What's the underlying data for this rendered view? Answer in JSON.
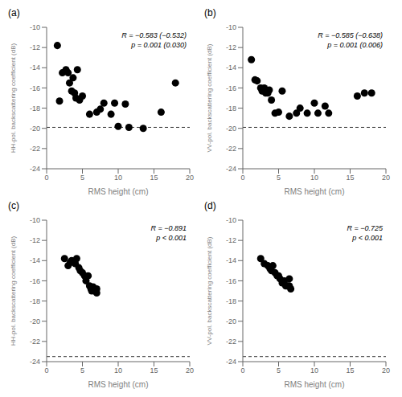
{
  "chart_data": [
    {
      "type": "scatter",
      "title": "(a)",
      "xlabel": "RMS height (cm)",
      "ylabel": "HH-pol. backscattering coefficient (dB)",
      "color": "black",
      "x": [
        1.5,
        1.8,
        2.2,
        2.7,
        3.0,
        3.2,
        3.5,
        3.7,
        3.9,
        4.1,
        4.3,
        4.6,
        5.0,
        6.0,
        7.0,
        7.5,
        8.0,
        9.0,
        9.5,
        10.0,
        11.0,
        11.5,
        13.5,
        16.0,
        18.0
      ],
      "values": [
        -11.8,
        -17.3,
        -14.5,
        -14.2,
        -14.5,
        -15.5,
        -16.3,
        -15.0,
        -16.5,
        -17.0,
        -14.2,
        -17.2,
        -16.8,
        -18.6,
        -18.4,
        -18.1,
        -17.5,
        -18.6,
        -17.5,
        -19.8,
        -17.6,
        -19.9,
        -20.0,
        -18.4,
        -15.5
      ],
      "annotations": [
        "R = −0.583 (−0.532)",
        "p = 0.001 (0.030)"
      ],
      "nesz": -19.9,
      "xlim": [
        0,
        20
      ],
      "ylim": [
        -24,
        -10
      ],
      "xticks": [
        0,
        5,
        10,
        15,
        20
      ],
      "yticks": [
        -10,
        -12,
        -14,
        -16,
        -18,
        -20,
        -22,
        -24
      ]
    },
    {
      "type": "scatter",
      "title": "(b)",
      "xlabel": "RMS height (cm)",
      "ylabel": "VV-pol. backscattering coefficient (dB)",
      "color": "black",
      "x": [
        1.2,
        1.7,
        2.0,
        2.5,
        2.7,
        3.0,
        3.2,
        3.5,
        3.7,
        4.0,
        4.5,
        5.0,
        5.5,
        6.5,
        7.5,
        8.0,
        9.0,
        10.0,
        10.5,
        11.5,
        12.0,
        16.0,
        17.0,
        18.0
      ],
      "values": [
        -13.2,
        -15.2,
        -15.3,
        -16.0,
        -16.3,
        -16.0,
        -16.5,
        -16.5,
        -16.2,
        -17.2,
        -18.5,
        -18.4,
        -16.3,
        -18.8,
        -18.5,
        -18.0,
        -18.5,
        -17.5,
        -18.5,
        -17.8,
        -18.5,
        -16.8,
        -16.5,
        -16.5
      ],
      "annotations": [
        "R = −0.585 (−0.638)",
        "p = 0.001 (0.006)"
      ],
      "nesz": -19.9,
      "xlim": [
        0,
        20
      ],
      "ylim": [
        -24,
        -10
      ],
      "xticks": [
        0,
        5,
        10,
        15,
        20
      ],
      "yticks": [
        -10,
        -12,
        -14,
        -16,
        -18,
        -20,
        -22,
        -24
      ]
    },
    {
      "type": "scatter",
      "title": "(c)",
      "xlabel": "RMS height (cm)",
      "ylabel": "HH-pol. backscattering coefficient (dB)",
      "color": "black",
      "x": [
        2.5,
        3.0,
        3.3,
        3.5,
        4.0,
        4.2,
        4.5,
        4.7,
        5.0,
        5.3,
        5.5,
        5.8,
        6.0,
        6.2,
        6.3,
        6.5,
        6.7,
        7.0,
        7.0
      ],
      "values": [
        -13.8,
        -14.5,
        -14.2,
        -14.0,
        -14.3,
        -13.8,
        -14.7,
        -15.0,
        -15.2,
        -15.5,
        -16.0,
        -15.5,
        -16.5,
        -16.8,
        -17.0,
        -16.6,
        -17.0,
        -17.2,
        -16.8
      ],
      "annotations": [
        "R = −0.891",
        "p < 0.001"
      ],
      "nesz": -23.5,
      "xlim": [
        0,
        20
      ],
      "ylim": [
        -24,
        -10
      ],
      "xticks": [
        0,
        5,
        10,
        15,
        20
      ],
      "yticks": [
        -10,
        -12,
        -14,
        -16,
        -18,
        -20,
        -22,
        -24
      ]
    },
    {
      "type": "scatter",
      "title": "(d)",
      "xlabel": "RMS height (cm)",
      "ylabel": "VV-pol. backscattering coefficient (dB)",
      "color": "black",
      "x": [
        2.5,
        3.0,
        3.5,
        3.8,
        4.0,
        4.2,
        4.5,
        4.8,
        5.0,
        5.2,
        5.5,
        5.8,
        6.0,
        6.2,
        6.5,
        6.5,
        6.7
      ],
      "values": [
        -13.8,
        -14.3,
        -14.5,
        -14.8,
        -15.0,
        -14.5,
        -15.2,
        -15.5,
        -15.5,
        -15.8,
        -16.2,
        -16.0,
        -16.5,
        -16.5,
        -15.8,
        -16.5,
        -16.8
      ],
      "annotations": [
        "R = −0.725",
        "p < 0.001"
      ],
      "nesz": -23.5,
      "xlim": [
        0,
        20
      ],
      "ylim": [
        -24,
        -10
      ],
      "xticks": [
        0,
        5,
        10,
        15,
        20
      ],
      "yticks": [
        -10,
        -12,
        -14,
        -16,
        -18,
        -20,
        -22,
        -24
      ]
    }
  ]
}
